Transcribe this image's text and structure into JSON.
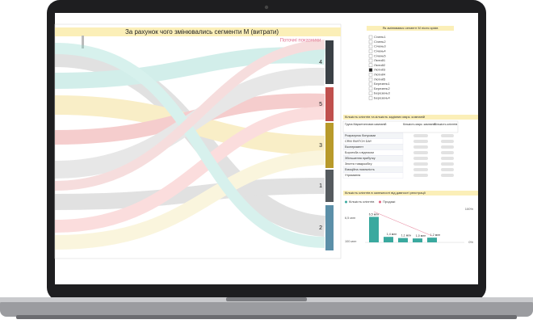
{
  "sankey": {
    "title": "За рахунок чого змінювались сегменти М (витрати)",
    "current_label": "Поточні показники",
    "segments": [
      "4",
      "5",
      "3",
      "1",
      "2"
    ]
  },
  "filter": {
    "title": "Як змінювався сегмент М після зрізів",
    "items": [
      "Січень1",
      "Січень2",
      "Січень3",
      "Січень4",
      "Січень5",
      "Лютий1",
      "Лютий2",
      "Лютий3",
      "Лютий4",
      "Лютий5",
      "Березень1",
      "Березень2",
      "Березень3",
      "Березень4"
    ],
    "checked": [
      7
    ]
  },
  "table": {
    "title": "Кількість клієнтів та кількість задіяних марк. компаній",
    "headers": [
      "Група Маркетингових кампаній",
      "Кількість марк. кампаній",
      "Кількість клієнтів"
    ],
    "rows": [
      "Розрахунок бонусами",
      "CRM SWITCH DAY",
      "Експеримент",
      "Боротьба з відтоком",
      "Збільшення прибутку",
      "Зняття товарообігу",
      "Емоційна лояльність",
      "Утримання"
    ]
  },
  "bar_chart": {
    "type": "bar",
    "title": "Кількість клієнтів в залежності від давності реєстрації",
    "legend": [
      "Кількість клієнтів",
      "Продажі"
    ],
    "colors": [
      "#3aa99f",
      "#e0607e"
    ],
    "values": [
      6.5,
      1.4,
      1.1,
      1.0,
      1.2
    ],
    "value_labels": [
      "6,5 млн",
      "1,4 млн",
      "1,1 млн",
      "1,0 млн",
      "1,2 млн"
    ],
    "ylim": [
      0,
      7
    ],
    "axis_texts": [
      "6,5 млн",
      "100 млн"
    ],
    "y2_texts": [
      "100%",
      "0%"
    ]
  }
}
